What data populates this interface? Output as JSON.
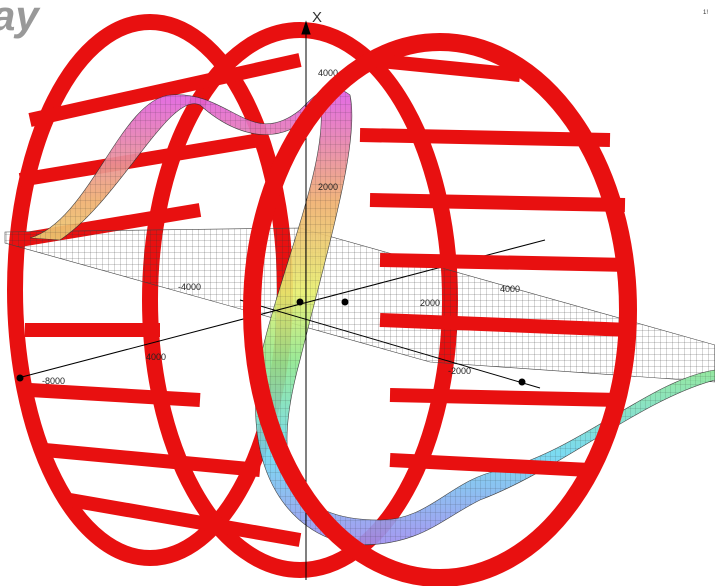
{
  "header": {
    "title": "ay",
    "corner": "1!"
  },
  "axes": {
    "vertical_label": "X"
  },
  "tick_labels": [
    "4000",
    "2000",
    "-4000",
    "2000",
    "4000",
    "4000",
    "-8000",
    "-2000"
  ]
}
